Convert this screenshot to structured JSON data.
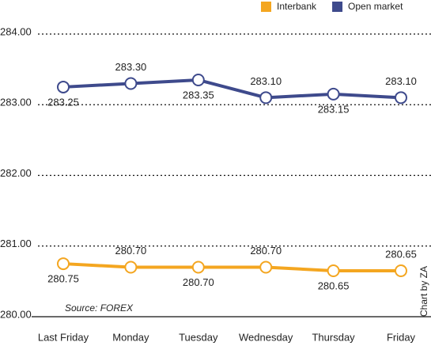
{
  "chart_data": {
    "type": "line",
    "categories": [
      "Last Friday",
      "Monday",
      "Tuesday",
      "Wednesday",
      "Thursday",
      "Friday"
    ],
    "series": [
      {
        "name": "Interbank",
        "color": "#f4a620",
        "values": [
          280.75,
          280.7,
          280.7,
          280.7,
          280.65,
          280.65
        ],
        "value_labels": [
          "280.75",
          "280.70",
          "280.70",
          "280.70",
          "280.65",
          "280.65"
        ]
      },
      {
        "name": "Open market",
        "color": "#3e4a8c",
        "values": [
          283.25,
          283.3,
          283.35,
          283.1,
          283.15,
          283.1
        ],
        "value_labels": [
          "283.25",
          "283.30",
          "283.35",
          "283.10",
          "283.15",
          "283.10"
        ]
      }
    ],
    "ylim": [
      280,
      284
    ],
    "yticks": [
      {
        "value": 280,
        "label": "280.00"
      },
      {
        "value": 281,
        "label": "281.00"
      },
      {
        "value": 282,
        "label": "282.00"
      },
      {
        "value": 283,
        "label": "283.00"
      },
      {
        "value": 284,
        "label": "284.00"
      }
    ],
    "grid": true,
    "source": "Source: FOREX",
    "credit": "Chart by ZA"
  }
}
